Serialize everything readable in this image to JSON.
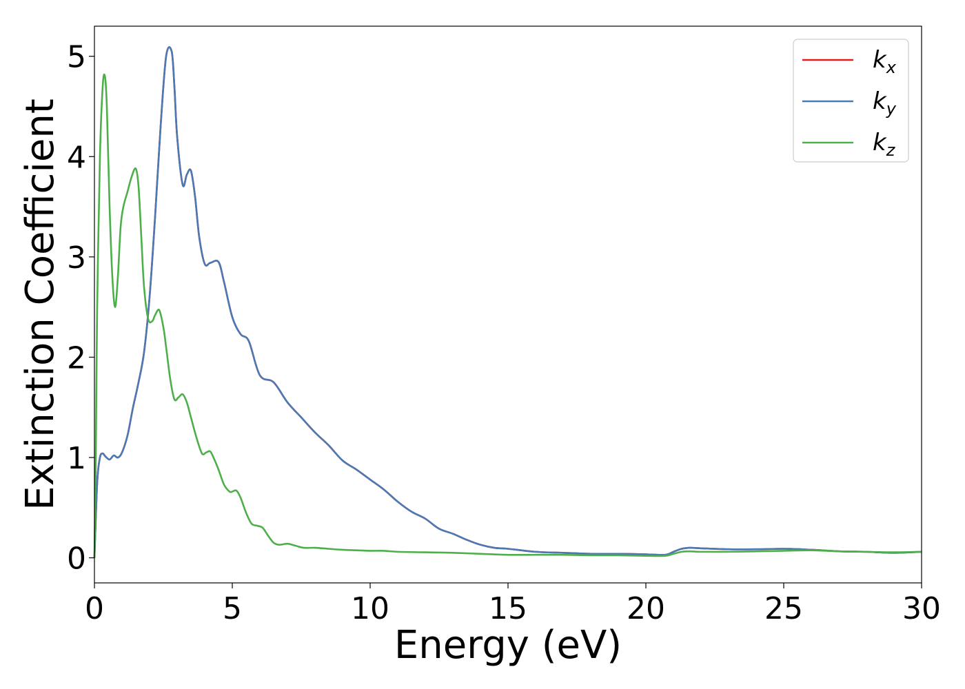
{
  "chart_data": {
    "type": "line",
    "xlabel": "Energy (eV)",
    "ylabel": "Extinction Coefficient",
    "xlim": [
      0,
      30
    ],
    "ylim": [
      -0.25,
      5.3
    ],
    "xticks": [
      0,
      5,
      10,
      15,
      20,
      25,
      30
    ],
    "yticks": [
      0,
      1,
      2,
      3,
      4,
      5
    ],
    "grid": false,
    "legend_position": "top-right",
    "colors": {
      "kx": "#e41a1c",
      "ky": "#4a7ab5",
      "kz": "#4daf4a"
    },
    "series": [
      {
        "name": "k_x",
        "name_base": "k",
        "name_sub": "x",
        "color": "#e41a1c",
        "x": [
          0,
          0.1,
          0.2,
          0.3,
          0.4,
          0.55,
          0.7,
          0.85,
          1.0,
          1.2,
          1.4,
          1.6,
          1.8,
          2.0,
          2.2,
          2.4,
          2.6,
          2.8,
          2.9,
          3.0,
          3.2,
          3.35,
          3.5,
          3.65,
          3.8,
          4.0,
          4.2,
          4.5,
          4.7,
          5.0,
          5.3,
          5.6,
          6.0,
          6.5,
          7.0,
          7.5,
          8.0,
          8.5,
          9.0,
          9.5,
          10.0,
          10.5,
          11.0,
          11.5,
          12.0,
          12.5,
          13.0,
          13.5,
          14.0,
          14.5,
          15.0,
          16.0,
          17.0,
          18.0,
          19.0,
          20.0,
          20.7,
          21.0,
          21.3,
          21.6,
          22.0,
          23.0,
          24.0,
          25.0,
          26.0,
          27.0,
          28.0,
          29.0,
          30.0
        ],
        "values": [
          0,
          0.75,
          1.0,
          1.04,
          1.01,
          0.98,
          1.02,
          1.0,
          1.05,
          1.22,
          1.5,
          1.75,
          2.05,
          2.6,
          3.4,
          4.3,
          5.0,
          5.05,
          4.7,
          4.2,
          3.72,
          3.82,
          3.86,
          3.6,
          3.2,
          2.93,
          2.94,
          2.95,
          2.75,
          2.4,
          2.23,
          2.16,
          1.82,
          1.75,
          1.55,
          1.4,
          1.25,
          1.12,
          0.97,
          0.88,
          0.78,
          0.68,
          0.56,
          0.46,
          0.39,
          0.29,
          0.24,
          0.18,
          0.13,
          0.1,
          0.09,
          0.06,
          0.05,
          0.04,
          0.04,
          0.035,
          0.03,
          0.06,
          0.09,
          0.1,
          0.095,
          0.085,
          0.085,
          0.09,
          0.08,
          0.065,
          0.06,
          0.05,
          0.06
        ]
      },
      {
        "name": "k_y",
        "name_base": "k",
        "name_sub": "y",
        "color": "#4a7ab5",
        "x": [
          0,
          0.1,
          0.2,
          0.3,
          0.4,
          0.55,
          0.7,
          0.85,
          1.0,
          1.2,
          1.4,
          1.6,
          1.8,
          2.0,
          2.2,
          2.4,
          2.6,
          2.8,
          2.9,
          3.0,
          3.2,
          3.35,
          3.5,
          3.65,
          3.8,
          4.0,
          4.2,
          4.5,
          4.7,
          5.0,
          5.3,
          5.6,
          6.0,
          6.5,
          7.0,
          7.5,
          8.0,
          8.5,
          9.0,
          9.5,
          10.0,
          10.5,
          11.0,
          11.5,
          12.0,
          12.5,
          13.0,
          13.5,
          14.0,
          14.5,
          15.0,
          16.0,
          17.0,
          18.0,
          19.0,
          20.0,
          20.7,
          21.0,
          21.3,
          21.6,
          22.0,
          23.0,
          24.0,
          25.0,
          26.0,
          27.0,
          28.0,
          29.0,
          30.0
        ],
        "values": [
          0,
          0.75,
          1.0,
          1.04,
          1.01,
          0.98,
          1.02,
          1.0,
          1.05,
          1.22,
          1.5,
          1.75,
          2.05,
          2.6,
          3.4,
          4.3,
          5.0,
          5.05,
          4.7,
          4.2,
          3.72,
          3.82,
          3.86,
          3.6,
          3.2,
          2.93,
          2.94,
          2.95,
          2.75,
          2.4,
          2.23,
          2.16,
          1.82,
          1.75,
          1.55,
          1.4,
          1.25,
          1.12,
          0.97,
          0.88,
          0.78,
          0.68,
          0.56,
          0.46,
          0.39,
          0.29,
          0.24,
          0.18,
          0.13,
          0.1,
          0.09,
          0.06,
          0.05,
          0.04,
          0.04,
          0.035,
          0.03,
          0.06,
          0.09,
          0.1,
          0.095,
          0.085,
          0.085,
          0.09,
          0.08,
          0.065,
          0.06,
          0.05,
          0.06
        ]
      },
      {
        "name": "k_z",
        "name_base": "k",
        "name_sub": "z",
        "color": "#4daf4a",
        "x": [
          0,
          0.05,
          0.1,
          0.2,
          0.3,
          0.38,
          0.45,
          0.55,
          0.65,
          0.75,
          0.85,
          0.95,
          1.05,
          1.2,
          1.35,
          1.5,
          1.6,
          1.7,
          1.8,
          1.95,
          2.1,
          2.2,
          2.35,
          2.5,
          2.6,
          2.75,
          2.9,
          3.05,
          3.2,
          3.35,
          3.5,
          3.7,
          3.9,
          4.05,
          4.2,
          4.35,
          4.5,
          4.7,
          4.9,
          5.0,
          5.15,
          5.3,
          5.5,
          5.7,
          5.9,
          6.1,
          6.3,
          6.5,
          6.7,
          7.0,
          7.3,
          7.6,
          8.0,
          8.5,
          9.0,
          9.5,
          10.0,
          10.5,
          11.0,
          12.0,
          13.0,
          14.0,
          15.0,
          16.0,
          17.0,
          18.0,
          19.0,
          20.0,
          20.7,
          21.0,
          21.3,
          21.6,
          22.0,
          23.0,
          24.0,
          25.0,
          26.0,
          27.0,
          28.0,
          29.0,
          30.0
        ],
        "values": [
          0,
          1.0,
          2.5,
          4.0,
          4.7,
          4.8,
          4.5,
          3.5,
          2.8,
          2.5,
          2.8,
          3.3,
          3.5,
          3.65,
          3.8,
          3.88,
          3.7,
          3.2,
          2.7,
          2.38,
          2.36,
          2.42,
          2.47,
          2.3,
          2.1,
          1.78,
          1.58,
          1.6,
          1.63,
          1.55,
          1.4,
          1.2,
          1.04,
          1.05,
          1.06,
          0.98,
          0.88,
          0.73,
          0.66,
          0.66,
          0.67,
          0.6,
          0.45,
          0.34,
          0.32,
          0.3,
          0.22,
          0.15,
          0.13,
          0.14,
          0.12,
          0.1,
          0.1,
          0.09,
          0.08,
          0.075,
          0.07,
          0.07,
          0.06,
          0.055,
          0.05,
          0.04,
          0.03,
          0.03,
          0.03,
          0.025,
          0.025,
          0.02,
          0.02,
          0.04,
          0.06,
          0.065,
          0.06,
          0.06,
          0.065,
          0.07,
          0.075,
          0.065,
          0.06,
          0.055,
          0.06
        ]
      }
    ]
  }
}
